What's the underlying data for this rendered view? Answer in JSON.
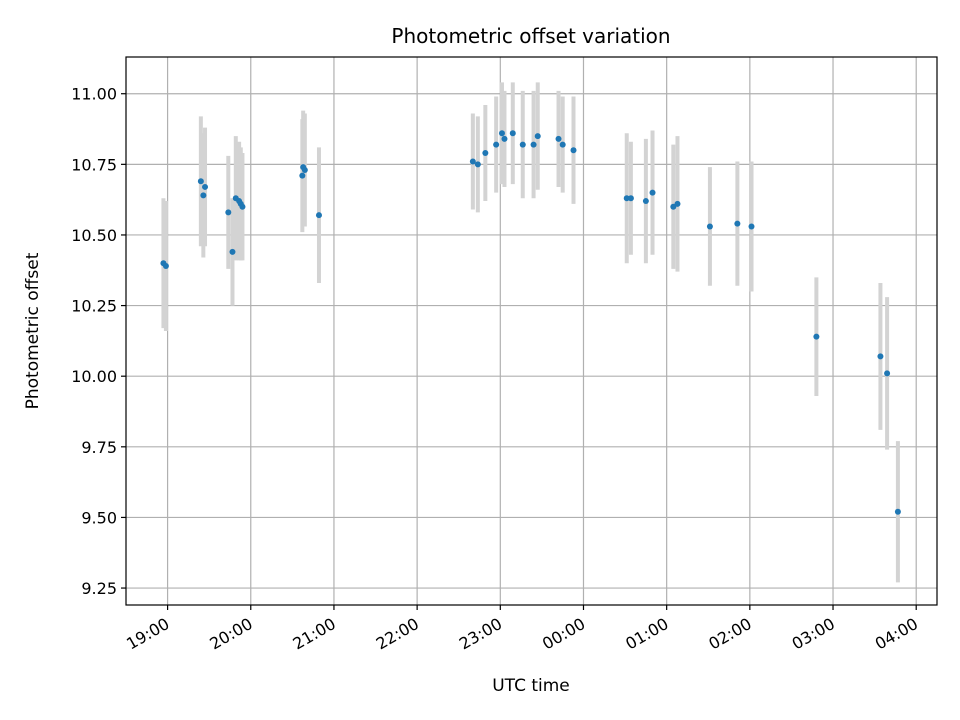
{
  "chart_data": {
    "type": "scatter",
    "title": "Photometric offset variation",
    "xlabel": "UTC time",
    "ylabel": "Photometric offset",
    "x_unit": "hours after 19:00 UTC",
    "xlim": [
      -0.5,
      9.25
    ],
    "ylim": [
      9.19,
      11.13
    ],
    "xticks": [
      {
        "value": 0,
        "label": "19:00"
      },
      {
        "value": 1,
        "label": "20:00"
      },
      {
        "value": 2,
        "label": "21:00"
      },
      {
        "value": 3,
        "label": "22:00"
      },
      {
        "value": 4,
        "label": "23:00"
      },
      {
        "value": 5,
        "label": "00:00"
      },
      {
        "value": 6,
        "label": "01:00"
      },
      {
        "value": 7,
        "label": "02:00"
      },
      {
        "value": 8,
        "label": "03:00"
      },
      {
        "value": 9,
        "label": "04:00"
      }
    ],
    "yticks": [
      {
        "value": 9.25,
        "label": "9.25"
      },
      {
        "value": 9.5,
        "label": "9.50"
      },
      {
        "value": 9.75,
        "label": "9.75"
      },
      {
        "value": 10.0,
        "label": "10.00"
      },
      {
        "value": 10.25,
        "label": "10.25"
      },
      {
        "value": 10.5,
        "label": "10.50"
      },
      {
        "value": 10.75,
        "label": "10.75"
      },
      {
        "value": 11.0,
        "label": "11.00"
      }
    ],
    "grid": true,
    "point_color": "#1f77b4",
    "errorbar_color": "#d3d3d3",
    "points": [
      {
        "x": -0.05,
        "y": 10.4,
        "err": 0.23
      },
      {
        "x": -0.02,
        "y": 10.39,
        "err": 0.23
      },
      {
        "x": 0.4,
        "y": 10.69,
        "err": 0.23
      },
      {
        "x": 0.43,
        "y": 10.64,
        "err": 0.22
      },
      {
        "x": 0.45,
        "y": 10.67,
        "err": 0.21
      },
      {
        "x": 0.73,
        "y": 10.58,
        "err": 0.2
      },
      {
        "x": 0.78,
        "y": 10.44,
        "err": 0.19
      },
      {
        "x": 0.82,
        "y": 10.63,
        "err": 0.22
      },
      {
        "x": 0.86,
        "y": 10.62,
        "err": 0.21
      },
      {
        "x": 0.88,
        "y": 10.61,
        "err": 0.2
      },
      {
        "x": 0.9,
        "y": 10.6,
        "err": 0.19
      },
      {
        "x": 1.62,
        "y": 10.71,
        "err": 0.2
      },
      {
        "x": 1.63,
        "y": 10.74,
        "err": 0.2
      },
      {
        "x": 1.65,
        "y": 10.73,
        "err": 0.2
      },
      {
        "x": 1.82,
        "y": 10.57,
        "err": 0.24
      },
      {
        "x": 3.67,
        "y": 10.76,
        "err": 0.17
      },
      {
        "x": 3.73,
        "y": 10.75,
        "err": 0.17
      },
      {
        "x": 3.82,
        "y": 10.79,
        "err": 0.17
      },
      {
        "x": 3.95,
        "y": 10.82,
        "err": 0.17
      },
      {
        "x": 4.02,
        "y": 10.86,
        "err": 0.18
      },
      {
        "x": 4.05,
        "y": 10.84,
        "err": 0.17
      },
      {
        "x": 4.15,
        "y": 10.86,
        "err": 0.18
      },
      {
        "x": 4.27,
        "y": 10.82,
        "err": 0.19
      },
      {
        "x": 4.4,
        "y": 10.82,
        "err": 0.19
      },
      {
        "x": 4.45,
        "y": 10.85,
        "err": 0.19
      },
      {
        "x": 4.7,
        "y": 10.84,
        "err": 0.17
      },
      {
        "x": 4.75,
        "y": 10.82,
        "err": 0.17
      },
      {
        "x": 4.88,
        "y": 10.8,
        "err": 0.19
      },
      {
        "x": 5.52,
        "y": 10.63,
        "err": 0.23
      },
      {
        "x": 5.57,
        "y": 10.63,
        "err": 0.2
      },
      {
        "x": 5.75,
        "y": 10.62,
        "err": 0.22
      },
      {
        "x": 5.83,
        "y": 10.65,
        "err": 0.22
      },
      {
        "x": 6.08,
        "y": 10.6,
        "err": 0.22
      },
      {
        "x": 6.13,
        "y": 10.61,
        "err": 0.24
      },
      {
        "x": 6.52,
        "y": 10.53,
        "err": 0.21
      },
      {
        "x": 6.85,
        "y": 10.54,
        "err": 0.22
      },
      {
        "x": 7.02,
        "y": 10.53,
        "err": 0.23
      },
      {
        "x": 7.8,
        "y": 10.14,
        "err": 0.21
      },
      {
        "x": 8.57,
        "y": 10.07,
        "err": 0.26
      },
      {
        "x": 8.65,
        "y": 10.01,
        "err": 0.27
      },
      {
        "x": 8.78,
        "y": 9.52,
        "err": 0.25
      }
    ]
  }
}
